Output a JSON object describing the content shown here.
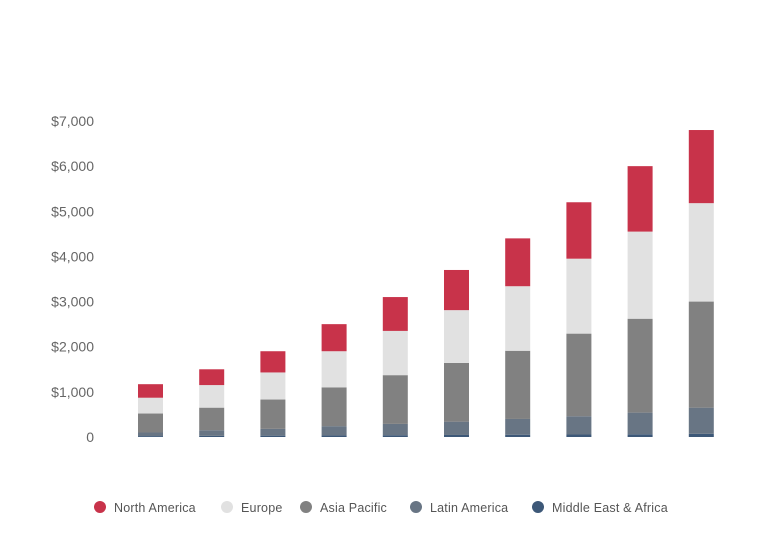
{
  "chart_data": {
    "type": "bar",
    "stacked": true,
    "title": "",
    "xlabel": "",
    "ylabel": "",
    "categories": [
      "",
      "",
      "",
      "",
      "",
      "",
      "",
      "",
      "",
      ""
    ],
    "ylim": [
      0,
      7000
    ],
    "yticks": [
      {
        "value": 0,
        "label": "0"
      },
      {
        "value": 1000,
        "label": "$1,000"
      },
      {
        "value": 2000,
        "label": "$2,000"
      },
      {
        "value": 3000,
        "label": "$3,000"
      },
      {
        "value": 4000,
        "label": "$4,000"
      },
      {
        "value": 5000,
        "label": "$5,000"
      },
      {
        "value": 6000,
        "label": "$6,000"
      },
      {
        "value": 7000,
        "label": "$7,000"
      }
    ],
    "grid": false,
    "legend_position": "bottom",
    "series": [
      {
        "name": "Middle East & Africa",
        "color": "#3d5878",
        "values": [
          20,
          25,
          30,
          35,
          40,
          45,
          50,
          55,
          60,
          70
        ]
      },
      {
        "name": "Latin America",
        "color": "#687584",
        "values": [
          80,
          125,
          150,
          205,
          250,
          295,
          350,
          405,
          480,
          580
        ]
      },
      {
        "name": "Asia Pacific",
        "color": "#818181",
        "values": [
          420,
          500,
          650,
          860,
          1080,
          1300,
          1510,
          1830,
          2080,
          2350
        ]
      },
      {
        "name": "Europe",
        "color": "#e1e1e1",
        "values": [
          350,
          500,
          600,
          800,
          980,
          1170,
          1430,
          1660,
          1930,
          2180
        ]
      },
      {
        "name": "North America",
        "color": "#c8334a",
        "values": [
          300,
          350,
          470,
          600,
          750,
          890,
          1060,
          1250,
          1450,
          1620
        ]
      }
    ],
    "legend_order": [
      "North America",
      "Europe",
      "Asia Pacific",
      "Latin America",
      "Middle East & Africa"
    ]
  }
}
